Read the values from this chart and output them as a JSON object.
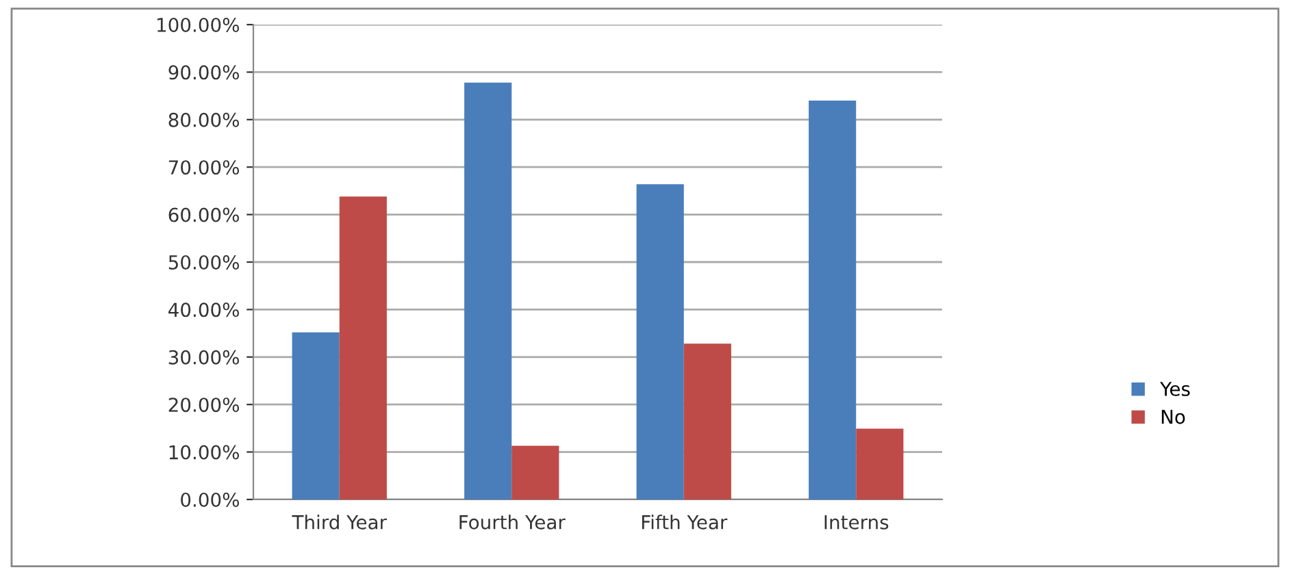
{
  "chart_data": {
    "type": "bar",
    "categories": [
      "Third Year",
      "Fourth Year",
      "Fifth Year",
      "Interns"
    ],
    "series": [
      {
        "name": "Yes",
        "color": "#4a7ebb",
        "values": [
          35.2,
          87.8,
          66.4,
          84.0
        ]
      },
      {
        "name": "No",
        "color": "#be4b48",
        "values": [
          63.8,
          11.3,
          32.8,
          14.9
        ]
      }
    ],
    "ylim": [
      0,
      100
    ],
    "yticks": [
      {
        "value": 0,
        "label": "0.00%"
      },
      {
        "value": 10,
        "label": "10.00%"
      },
      {
        "value": 20,
        "label": "20.00%"
      },
      {
        "value": 30,
        "label": "30.00%"
      },
      {
        "value": 40,
        "label": "40.00%"
      },
      {
        "value": 50,
        "label": "50.00%"
      },
      {
        "value": 60,
        "label": "60.00%"
      },
      {
        "value": 70,
        "label": "70.00%"
      },
      {
        "value": 80,
        "label": "80.00%"
      },
      {
        "value": 90,
        "label": "90.00%"
      },
      {
        "value": 100,
        "label": "100.00%"
      }
    ],
    "grid": "y",
    "legend": "right"
  }
}
